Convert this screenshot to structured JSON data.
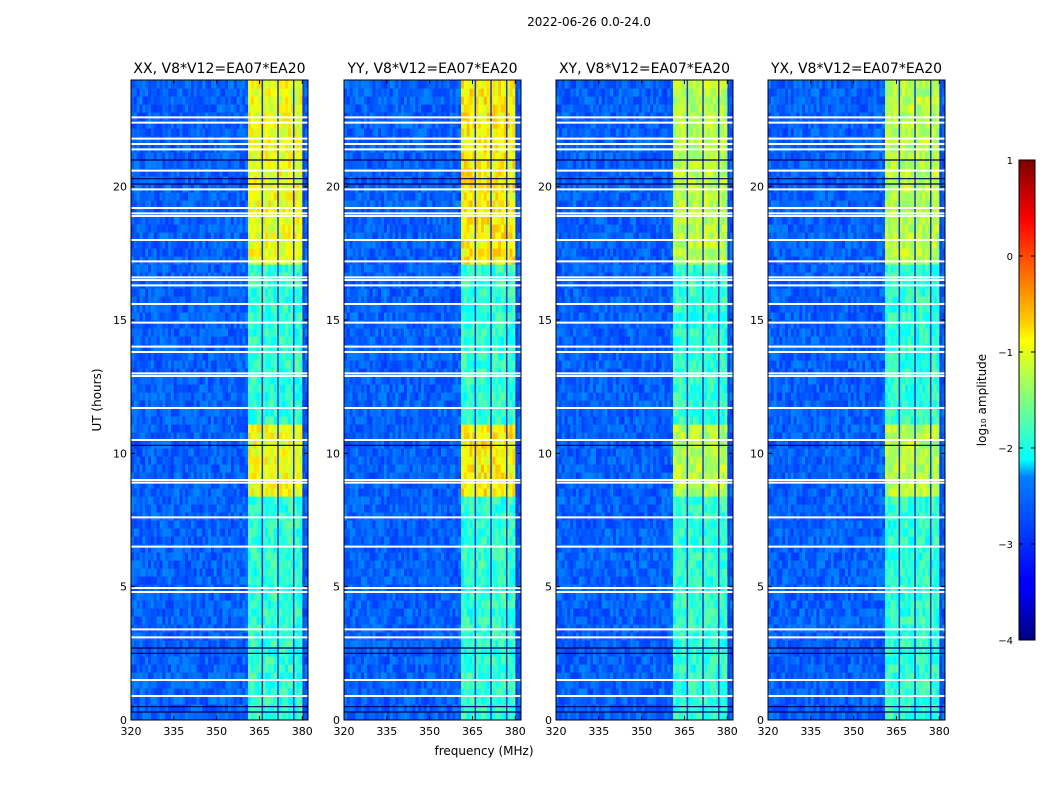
{
  "chart_data": {
    "type": "heatmap",
    "suptitle": "2022-06-26 0.0-24.0",
    "xlabel": "frequency (MHz)",
    "ylabel": "UT (hours)",
    "xlim": [
      320,
      382
    ],
    "ylim": [
      0,
      24
    ],
    "xticks": [
      320,
      335,
      350,
      365,
      380
    ],
    "yticks": [
      0,
      5,
      10,
      15,
      20
    ],
    "panels": [
      {
        "title": "XX, V8*V12=EA07*EA20",
        "rfi_strength": 1.0
      },
      {
        "title": "YY, V8*V12=EA07*EA20",
        "rfi_strength": 1.05
      },
      {
        "title": "XY, V8*V12=EA07*EA20",
        "rfi_strength": 0.9
      },
      {
        "title": "YX, V8*V12=EA07*EA20",
        "rfi_strength": 0.9
      }
    ],
    "rfi_band_mhz": [
      361,
      380
    ],
    "rfi_subbands_mhz": [
      [
        361,
        366
      ],
      [
        366.5,
        371.5
      ],
      [
        372,
        377
      ],
      [
        377.5,
        380.5
      ]
    ],
    "bright_intervals_ut": [
      [
        8.5,
        11.0
      ],
      [
        17.0,
        18.2
      ],
      [
        18.4,
        24.0
      ]
    ],
    "flagged_rows_ut": [
      0.9,
      1.5,
      3.1,
      3.4,
      4.8,
      4.95,
      6.5,
      7.6,
      8.9,
      9.0,
      10.5,
      11.7,
      12.9,
      13.0,
      13.8,
      14.0,
      14.9,
      15.6,
      16.3,
      16.5,
      16.6,
      17.2,
      18.0,
      18.9,
      19.0,
      19.2,
      19.9,
      20.6,
      21.4,
      21.6,
      21.8,
      22.4,
      22.6
    ],
    "dark_rows_ut": [
      0.3,
      0.5,
      2.5,
      2.7,
      10.3,
      20.1,
      20.3,
      21.0
    ],
    "colorbar": {
      "label": "log₁₀ amplitude",
      "min": -4,
      "max": 1,
      "ticks": [
        "1",
        "0",
        "−1",
        "−2",
        "−3",
        "−4"
      ],
      "tick_values": [
        1,
        0,
        -1,
        -2,
        -3,
        -4
      ]
    }
  }
}
